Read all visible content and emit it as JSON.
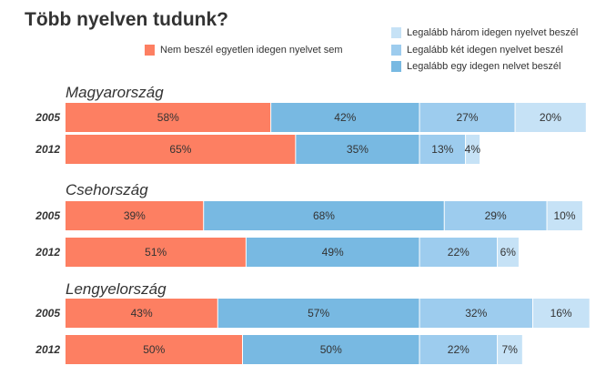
{
  "title": "Több nyelven tudunk?",
  "legend": {
    "none": "Nem beszél egyetlen idegen nyelvet sem",
    "three": "Legalább három idegen nyelvet beszél",
    "two": "Legalább két idegen nyelvet beszél",
    "one": "Legalább egy idegen nelvet beszél"
  },
  "colors": {
    "none": "#fd7f62",
    "one": "#78b9e2",
    "two": "#9dccee",
    "three": "#c6e2f6"
  },
  "chart_data": {
    "type": "bar",
    "orientation": "horizontal-stacked",
    "series_keys": [
      "none",
      "one",
      "two",
      "three"
    ],
    "groups": [
      {
        "country": "Magyarország",
        "rows": [
          {
            "year": "2005",
            "values": [
              58,
              42,
              27,
              20
            ],
            "labels": [
              "58%",
              "42%",
              "27%",
              "20%"
            ]
          },
          {
            "year": "2012",
            "values": [
              65,
              35,
              13,
              4
            ],
            "labels": [
              "65%",
              "35%",
              "13%",
              "4%"
            ]
          }
        ]
      },
      {
        "country": "Csehország",
        "rows": [
          {
            "year": "2005",
            "values": [
              39,
              68,
              29,
              10
            ],
            "labels": [
              "39%",
              "68%",
              "29%",
              "10%"
            ]
          },
          {
            "year": "2012",
            "values": [
              51,
              49,
              22,
              6
            ],
            "labels": [
              "51%",
              "49%",
              "22%",
              "6%"
            ]
          }
        ]
      },
      {
        "country": "Lengyelország",
        "rows": [
          {
            "year": "2005",
            "values": [
              43,
              57,
              32,
              16
            ],
            "labels": [
              "43%",
              "57%",
              "32%",
              "16%"
            ]
          },
          {
            "year": "2012",
            "values": [
              50,
              50,
              22,
              7
            ],
            "labels": [
              "50%",
              "50%",
              "22%",
              "7%"
            ]
          }
        ]
      }
    ]
  }
}
